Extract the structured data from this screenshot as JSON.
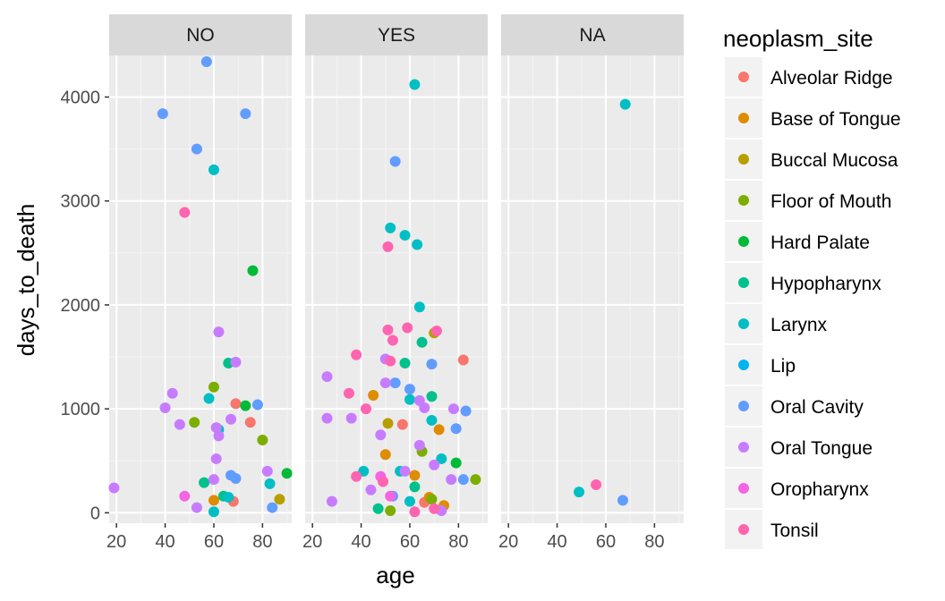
{
  "chart_data": {
    "type": "scatter",
    "facet_by": "vital_status",
    "facets": [
      "NO",
      "YES",
      "NA"
    ],
    "xlabel": "age",
    "ylabel": "days_to_death",
    "xlim": [
      17,
      92
    ],
    "ylim": [
      -100,
      4400
    ],
    "x_ticks": [
      20,
      40,
      60,
      80
    ],
    "y_ticks": [
      0,
      1000,
      2000,
      3000,
      4000
    ],
    "grid": true,
    "legend": {
      "title": "neoplasm_site",
      "position": "right",
      "entries": [
        {
          "name": "Alveolar Ridge",
          "color": "#F8766D"
        },
        {
          "name": "Base of Tongue",
          "color": "#DE8C00"
        },
        {
          "name": "Buccal Mucosa",
          "color": "#B79F00"
        },
        {
          "name": "Floor of Mouth",
          "color": "#7CAE00"
        },
        {
          "name": "Hard Palate",
          "color": "#00BA38"
        },
        {
          "name": "Hypopharynx",
          "color": "#00C08B"
        },
        {
          "name": "Larynx",
          "color": "#00BFC4"
        },
        {
          "name": "Lip",
          "color": "#00B4F0"
        },
        {
          "name": "Oral Cavity",
          "color": "#619CFF"
        },
        {
          "name": "Oral Tongue",
          "color": "#C77CFF"
        },
        {
          "name": "Oropharynx",
          "color": "#F564E3"
        },
        {
          "name": "Tonsil",
          "color": "#FF64B0"
        }
      ]
    },
    "series": [
      {
        "name": "Alveolar Ridge",
        "points": [
          {
            "facet": "NO",
            "x": 69,
            "y": 1050
          },
          {
            "facet": "NO",
            "x": 75,
            "y": 870
          },
          {
            "facet": "NO",
            "x": 68,
            "y": 110
          },
          {
            "facet": "YES",
            "x": 82,
            "y": 1470
          },
          {
            "facet": "YES",
            "x": 57,
            "y": 850
          },
          {
            "facet": "YES",
            "x": 66,
            "y": 100
          }
        ]
      },
      {
        "name": "Base of Tongue",
        "points": [
          {
            "facet": "NO",
            "x": 60,
            "y": 120
          },
          {
            "facet": "YES",
            "x": 45,
            "y": 1130
          },
          {
            "facet": "YES",
            "x": 72,
            "y": 800
          },
          {
            "facet": "YES",
            "x": 50,
            "y": 560
          },
          {
            "facet": "YES",
            "x": 62,
            "y": 360
          },
          {
            "facet": "YES",
            "x": 68,
            "y": 150
          },
          {
            "facet": "YES",
            "x": 74,
            "y": 70
          }
        ]
      },
      {
        "name": "Buccal Mucosa",
        "points": [
          {
            "facet": "NO",
            "x": 87,
            "y": 130
          },
          {
            "facet": "YES",
            "x": 70,
            "y": 1730
          },
          {
            "facet": "YES",
            "x": 51,
            "y": 860
          }
        ]
      },
      {
        "name": "Floor of Mouth",
        "points": [
          {
            "facet": "NO",
            "x": 80,
            "y": 700
          },
          {
            "facet": "NO",
            "x": 52,
            "y": 870
          },
          {
            "facet": "NO",
            "x": 60,
            "y": 1210
          },
          {
            "facet": "YES",
            "x": 87,
            "y": 320
          },
          {
            "facet": "YES",
            "x": 52,
            "y": 20
          },
          {
            "facet": "YES",
            "x": 65,
            "y": 590
          },
          {
            "facet": "YES",
            "x": 69,
            "y": 130
          }
        ]
      },
      {
        "name": "Hard Palate",
        "points": [
          {
            "facet": "NO",
            "x": 76,
            "y": 2330
          },
          {
            "facet": "NO",
            "x": 73,
            "y": 1030
          },
          {
            "facet": "NO",
            "x": 90,
            "y": 380
          },
          {
            "facet": "YES",
            "x": 79,
            "y": 480
          }
        ]
      },
      {
        "name": "Hypopharynx",
        "points": [
          {
            "facet": "NO",
            "x": 66,
            "y": 1440
          },
          {
            "facet": "NO",
            "x": 56,
            "y": 290
          },
          {
            "facet": "NO",
            "x": 64,
            "y": 160
          },
          {
            "facet": "YES",
            "x": 65,
            "y": 1640
          },
          {
            "facet": "YES",
            "x": 58,
            "y": 1440
          },
          {
            "facet": "YES",
            "x": 69,
            "y": 1120
          },
          {
            "facet": "YES",
            "x": 47,
            "y": 40
          },
          {
            "facet": "YES",
            "x": 62,
            "y": 250
          }
        ]
      },
      {
        "name": "Larynx",
        "points": [
          {
            "facet": "NO",
            "x": 60,
            "y": 3300
          },
          {
            "facet": "NO",
            "x": 58,
            "y": 1100
          },
          {
            "facet": "NO",
            "x": 62,
            "y": 800
          },
          {
            "facet": "NO",
            "x": 60,
            "y": 10
          },
          {
            "facet": "NO",
            "x": 83,
            "y": 280
          },
          {
            "facet": "NO",
            "x": 66,
            "y": 150
          },
          {
            "facet": "YES",
            "x": 62,
            "y": 4120
          },
          {
            "facet": "YES",
            "x": 52,
            "y": 2740
          },
          {
            "facet": "YES",
            "x": 58,
            "y": 2670
          },
          {
            "facet": "YES",
            "x": 63,
            "y": 2580
          },
          {
            "facet": "YES",
            "x": 64,
            "y": 1980
          },
          {
            "facet": "YES",
            "x": 60,
            "y": 1090
          },
          {
            "facet": "YES",
            "x": 69,
            "y": 890
          },
          {
            "facet": "YES",
            "x": 73,
            "y": 520
          },
          {
            "facet": "YES",
            "x": 56,
            "y": 400
          },
          {
            "facet": "YES",
            "x": 41,
            "y": 400
          },
          {
            "facet": "YES",
            "x": 60,
            "y": 110
          },
          {
            "facet": "NA",
            "x": 68,
            "y": 3930
          },
          {
            "facet": "NA",
            "x": 49,
            "y": 200
          }
        ]
      },
      {
        "name": "Oral Cavity",
        "points": [
          {
            "facet": "NO",
            "x": 57,
            "y": 4340
          },
          {
            "facet": "NO",
            "x": 39,
            "y": 3840
          },
          {
            "facet": "NO",
            "x": 73,
            "y": 3840
          },
          {
            "facet": "NO",
            "x": 53,
            "y": 3500
          },
          {
            "facet": "NO",
            "x": 78,
            "y": 1040
          },
          {
            "facet": "NO",
            "x": 67,
            "y": 360
          },
          {
            "facet": "NO",
            "x": 84,
            "y": 50
          },
          {
            "facet": "NO",
            "x": 69,
            "y": 330
          },
          {
            "facet": "YES",
            "x": 54,
            "y": 3380
          },
          {
            "facet": "YES",
            "x": 69,
            "y": 1430
          },
          {
            "facet": "YES",
            "x": 54,
            "y": 1250
          },
          {
            "facet": "YES",
            "x": 60,
            "y": 1190
          },
          {
            "facet": "YES",
            "x": 83,
            "y": 980
          },
          {
            "facet": "YES",
            "x": 79,
            "y": 810
          },
          {
            "facet": "YES",
            "x": 82,
            "y": 320
          },
          {
            "facet": "YES",
            "x": 53,
            "y": 160
          },
          {
            "facet": "NA",
            "x": 67,
            "y": 120
          }
        ]
      },
      {
        "name": "Oral Tongue",
        "points": [
          {
            "facet": "NO",
            "x": 19,
            "y": 240
          },
          {
            "facet": "NO",
            "x": 62,
            "y": 1740
          },
          {
            "facet": "NO",
            "x": 69,
            "y": 1450
          },
          {
            "facet": "NO",
            "x": 43,
            "y": 1150
          },
          {
            "facet": "NO",
            "x": 40,
            "y": 1010
          },
          {
            "facet": "NO",
            "x": 46,
            "y": 850
          },
          {
            "facet": "NO",
            "x": 61,
            "y": 820
          },
          {
            "facet": "NO",
            "x": 62,
            "y": 740
          },
          {
            "facet": "NO",
            "x": 67,
            "y": 900
          },
          {
            "facet": "NO",
            "x": 61,
            "y": 520
          },
          {
            "facet": "NO",
            "x": 82,
            "y": 400
          },
          {
            "facet": "NO",
            "x": 60,
            "y": 320
          },
          {
            "facet": "NO",
            "x": 53,
            "y": 50
          },
          {
            "facet": "YES",
            "x": 26,
            "y": 1310
          },
          {
            "facet": "YES",
            "x": 26,
            "y": 910
          },
          {
            "facet": "YES",
            "x": 28,
            "y": 110
          },
          {
            "facet": "YES",
            "x": 36,
            "y": 910
          },
          {
            "facet": "YES",
            "x": 50,
            "y": 1480
          },
          {
            "facet": "YES",
            "x": 50,
            "y": 1250
          },
          {
            "facet": "YES",
            "x": 64,
            "y": 1080
          },
          {
            "facet": "YES",
            "x": 66,
            "y": 1010
          },
          {
            "facet": "YES",
            "x": 78,
            "y": 1000
          },
          {
            "facet": "YES",
            "x": 48,
            "y": 750
          },
          {
            "facet": "YES",
            "x": 64,
            "y": 650
          },
          {
            "facet": "YES",
            "x": 58,
            "y": 400
          },
          {
            "facet": "YES",
            "x": 70,
            "y": 460
          },
          {
            "facet": "YES",
            "x": 77,
            "y": 320
          },
          {
            "facet": "YES",
            "x": 44,
            "y": 220
          },
          {
            "facet": "YES",
            "x": 73,
            "y": 20
          }
        ]
      },
      {
        "name": "Oropharynx",
        "points": [
          {
            "facet": "NO",
            "x": 48,
            "y": 160
          },
          {
            "facet": "YES",
            "x": 48,
            "y": 350
          },
          {
            "facet": "YES",
            "x": 52,
            "y": 160
          }
        ]
      },
      {
        "name": "Tonsil",
        "points": [
          {
            "facet": "NO",
            "x": 48,
            "y": 2890
          },
          {
            "facet": "YES",
            "x": 51,
            "y": 2560
          },
          {
            "facet": "YES",
            "x": 51,
            "y": 1760
          },
          {
            "facet": "YES",
            "x": 59,
            "y": 1780
          },
          {
            "facet": "YES",
            "x": 71,
            "y": 1750
          },
          {
            "facet": "YES",
            "x": 53,
            "y": 1660
          },
          {
            "facet": "YES",
            "x": 38,
            "y": 1520
          },
          {
            "facet": "YES",
            "x": 52,
            "y": 1460
          },
          {
            "facet": "YES",
            "x": 35,
            "y": 1150
          },
          {
            "facet": "YES",
            "x": 42,
            "y": 1000
          },
          {
            "facet": "YES",
            "x": 38,
            "y": 350
          },
          {
            "facet": "YES",
            "x": 49,
            "y": 300
          },
          {
            "facet": "YES",
            "x": 62,
            "y": 10
          },
          {
            "facet": "YES",
            "x": 70,
            "y": 40
          },
          {
            "facet": "NA",
            "x": 56,
            "y": 270
          }
        ]
      }
    ]
  }
}
